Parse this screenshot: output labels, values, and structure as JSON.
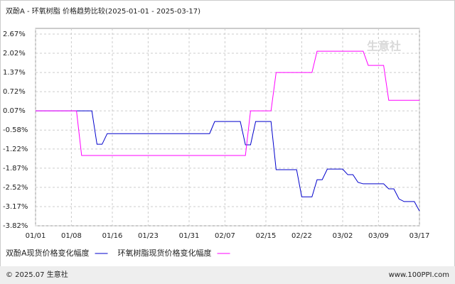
{
  "chart_data": {
    "type": "line",
    "title": "双酚A - 环氧树脂 价格趋势比较(2025-01-01 - 2025-03-17)",
    "watermark": "生意社",
    "footer_left": "© 2025.07 生意社",
    "footer_right": "www.100PPI.com",
    "x": [
      "01/01",
      "01/09",
      "01/10",
      "01/12",
      "01/13",
      "01/14",
      "01/15",
      "02/04",
      "02/05",
      "02/10",
      "02/11",
      "02/12",
      "02/13",
      "02/16",
      "02/17",
      "02/21",
      "02/22",
      "02/24",
      "02/25",
      "02/26",
      "02/27",
      "03/02",
      "03/03",
      "03/04",
      "03/05",
      "03/06",
      "03/07",
      "03/10",
      "03/11",
      "03/12",
      "03/13",
      "03/14",
      "03/16",
      "03/17"
    ],
    "series": [
      {
        "name": "双酚A现货价格变化幅度",
        "color": "#0000cc",
        "values": [
          0.07,
          0.07,
          0.07,
          0.07,
          -1.06,
          -1.06,
          -0.7,
          -0.7,
          -0.29,
          -0.29,
          -1.08,
          -1.08,
          -0.29,
          -0.29,
          -1.92,
          -1.92,
          -2.84,
          -2.84,
          -2.26,
          -2.26,
          -1.9,
          -1.9,
          -2.09,
          -2.09,
          -2.35,
          -2.4,
          -2.4,
          -2.4,
          -2.57,
          -2.57,
          -2.91,
          -3.0,
          -3.0,
          -3.32
        ]
      },
      {
        "name": "环氧树脂现货价格变化幅度",
        "color": "#ff00ff",
        "values": [
          0.07,
          0.07,
          -1.44,
          -1.44,
          -1.44,
          -1.44,
          -1.44,
          -1.44,
          -1.44,
          -1.44,
          -1.44,
          0.07,
          0.07,
          0.07,
          1.37,
          1.37,
          1.37,
          1.37,
          2.09,
          2.09,
          2.09,
          2.09,
          2.09,
          2.09,
          2.09,
          2.09,
          1.61,
          1.61,
          0.43,
          0.43,
          0.43,
          0.43,
          0.43,
          0.43
        ]
      }
    ],
    "xticks": [
      "01/01",
      "01/08",
      "01/16",
      "01/23",
      "01/31",
      "02/07",
      "02/15",
      "02/22",
      "03/02",
      "03/09",
      "03/17"
    ],
    "ylim": [
      -3.82,
      2.67
    ],
    "yticks": [
      {
        "value": 2.67,
        "label": "2.67%"
      },
      {
        "value": 2.02,
        "label": "2.02%"
      },
      {
        "value": 1.37,
        "label": "1.37%"
      },
      {
        "value": 0.72,
        "label": "0.72%"
      },
      {
        "value": 0.07,
        "label": "0.07%"
      },
      {
        "value": -0.58,
        "label": "-0.58%"
      },
      {
        "value": -1.22,
        "label": "-1.22%"
      },
      {
        "value": -1.87,
        "label": "-1.87%"
      },
      {
        "value": -2.52,
        "label": "-2.52%"
      },
      {
        "value": -3.17,
        "label": "-3.17%"
      },
      {
        "value": -3.82,
        "label": "-3.82%"
      }
    ],
    "grid": true
  }
}
